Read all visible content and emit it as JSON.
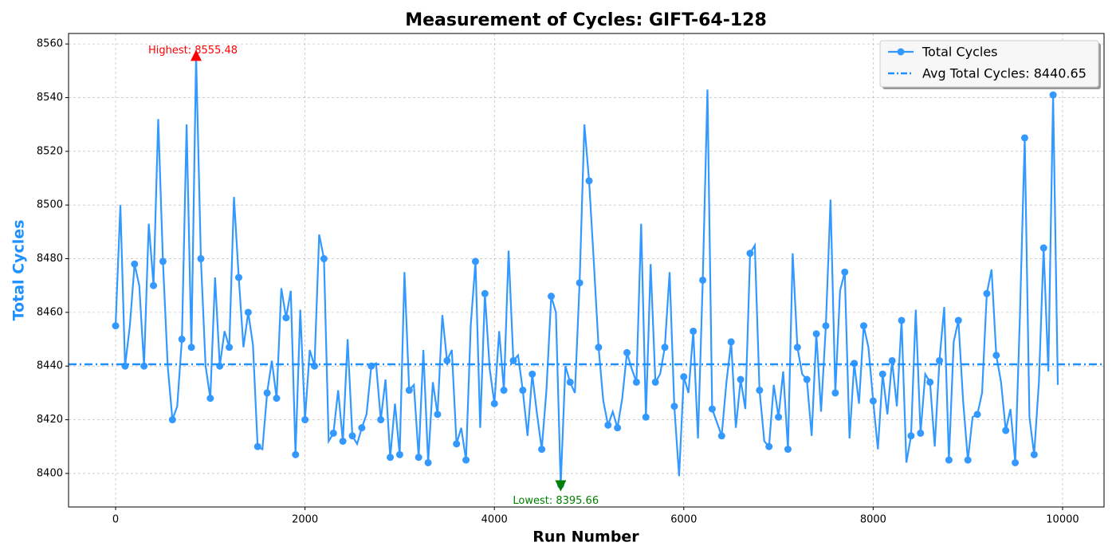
{
  "chart_data": {
    "type": "line",
    "title": "Measurement of Cycles: GIFT-64-128",
    "x_label": "Run Number",
    "y_label": "Total Cycles",
    "y_label_color": "#1e90ff",
    "x": [
      0,
      50,
      100,
      150,
      200,
      250,
      300,
      350,
      400,
      450,
      500,
      550,
      600,
      650,
      700,
      750,
      800,
      850,
      900,
      950,
      1000,
      1050,
      1100,
      1150,
      1200,
      1250,
      1300,
      1350,
      1400,
      1450,
      1500,
      1550,
      1600,
      1650,
      1700,
      1750,
      1800,
      1850,
      1900,
      1950,
      2000,
      2050,
      2100,
      2150,
      2200,
      2250,
      2300,
      2350,
      2400,
      2450,
      2500,
      2550,
      2600,
      2650,
      2700,
      2750,
      2800,
      2850,
      2900,
      2950,
      3000,
      3050,
      3100,
      3150,
      3200,
      3250,
      3300,
      3350,
      3400,
      3450,
      3500,
      3550,
      3600,
      3650,
      3700,
      3750,
      3800,
      3850,
      3900,
      3950,
      4000,
      4050,
      4100,
      4150,
      4200,
      4250,
      4300,
      4350,
      4400,
      4450,
      4500,
      4550,
      4600,
      4650,
      4700,
      4750,
      4800,
      4850,
      4900,
      4950,
      5000,
      5050,
      5100,
      5150,
      5200,
      5250,
      5300,
      5350,
      5400,
      5450,
      5500,
      5550,
      5600,
      5650,
      5700,
      5750,
      5800,
      5850,
      5900,
      5950,
      6000,
      6050,
      6100,
      6150,
      6200,
      6250,
      6300,
      6350,
      6400,
      6450,
      6500,
      6550,
      6600,
      6650,
      6700,
      6750,
      6800,
      6850,
      6900,
      6950,
      7000,
      7050,
      7100,
      7150,
      7200,
      7250,
      7300,
      7350,
      7400,
      7450,
      7500,
      7550,
      7600,
      7650,
      7700,
      7750,
      7800,
      7850,
      7900,
      7950,
      8000,
      8050,
      8100,
      8150,
      8200,
      8250,
      8300,
      8350,
      8400,
      8450,
      8500,
      8550,
      8600,
      8650,
      8700,
      8750,
      8800,
      8850,
      8900,
      8950,
      9000,
      9050,
      9100,
      9150,
      9200,
      9250,
      9300,
      9350,
      9400,
      9450,
      9500,
      9550,
      9600,
      9650,
      9700,
      9750,
      9800,
      9850,
      9900,
      9950
    ],
    "series": [
      {
        "name": "Total Cycles",
        "color": "#3399ff",
        "markevery": 2,
        "values": [
          8455,
          8500,
          8440,
          8455,
          8478,
          8470,
          8440,
          8493,
          8470,
          8532,
          8479,
          8440,
          8420,
          8425,
          8450,
          8530,
          8447,
          8555.48,
          8480,
          8440,
          8428,
          8473,
          8440,
          8453,
          8447,
          8503,
          8473,
          8447,
          8460,
          8448,
          8410,
          8409,
          8430,
          8442,
          8428,
          8469,
          8458,
          8468,
          8407,
          8461,
          8420,
          8446,
          8440,
          8489,
          8480,
          8412,
          8415,
          8431,
          8412,
          8450,
          8414,
          8411,
          8417,
          8422,
          8440,
          8441,
          8420,
          8435,
          8406,
          8426,
          8407,
          8475,
          8431,
          8433,
          8406,
          8446,
          8404,
          8434,
          8422,
          8459,
          8442,
          8446,
          8411,
          8417,
          8405,
          8455,
          8479,
          8417,
          8467,
          8439,
          8426,
          8453,
          8431,
          8483,
          8442,
          8444,
          8431,
          8414,
          8437,
          8422,
          8409,
          8431,
          8466,
          8460,
          8395.66,
          8440,
          8434,
          8430,
          8471,
          8530,
          8509,
          8479,
          8447,
          8427,
          8418,
          8423,
          8417,
          8428,
          8445,
          8439,
          8434,
          8493,
          8421,
          8478,
          8434,
          8437,
          8447,
          8475,
          8425,
          8399,
          8436,
          8430,
          8453,
          8413,
          8472,
          8543,
          8424,
          8419,
          8414,
          8434,
          8449,
          8417,
          8435,
          8424,
          8482,
          8485,
          8431,
          8412,
          8410,
          8433,
          8421,
          8438,
          8409,
          8482,
          8447,
          8437,
          8435,
          8414,
          8452,
          8423,
          8455,
          8502,
          8430,
          8468,
          8475,
          8413,
          8441,
          8426,
          8455,
          8447,
          8427,
          8409,
          8437,
          8422,
          8442,
          8425,
          8457,
          8404,
          8414,
          8461,
          8415,
          8437,
          8434,
          8410,
          8442,
          8462,
          8405,
          8449,
          8457,
          8427,
          8405,
          8421,
          8422,
          8430,
          8467,
          8476,
          8444,
          8434,
          8416,
          8424,
          8404,
          8459,
          8525,
          8421,
          8407,
          8434,
          8484,
          8438,
          8541,
          8433
        ]
      }
    ],
    "average": {
      "name": "Avg Total Cycles: 8440.65",
      "value": 8440.65,
      "color": "#1e90ff"
    },
    "annotations": [
      {
        "text": "Highest: 8555.48",
        "x": 850,
        "y": 8555.48,
        "color": "#ff0000",
        "marker": "up"
      },
      {
        "text": "Lowest: 8395.66",
        "x": 4700,
        "y": 8395.66,
        "color": "#008000",
        "marker": "down"
      }
    ],
    "xlim": [
      -497,
      10438
    ],
    "ylim": [
      8387.5,
      8563.9
    ],
    "xticks": [
      0,
      2000,
      4000,
      6000,
      8000,
      10000
    ],
    "yticks": [
      8400,
      8420,
      8440,
      8460,
      8480,
      8500,
      8520,
      8540,
      8560
    ],
    "grid": true,
    "legend": "upper right"
  }
}
